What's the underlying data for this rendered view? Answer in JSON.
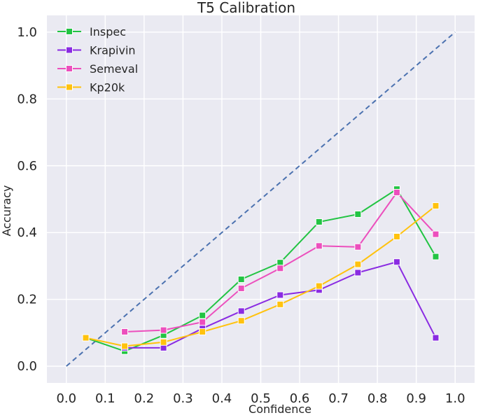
{
  "chart_data": {
    "type": "line",
    "title": "T5 Calibration",
    "xlabel": "Confidence",
    "ylabel": "Accuracy",
    "xlim": [
      -0.05,
      1.05
    ],
    "ylim": [
      -0.05,
      1.05
    ],
    "xticks": [
      "0.0",
      "0.1",
      "0.2",
      "0.3",
      "0.4",
      "0.5",
      "0.6",
      "0.7",
      "0.8",
      "0.9",
      "1.0"
    ],
    "yticks": [
      "0.0",
      "0.2",
      "0.4",
      "0.6",
      "0.8",
      "1.0"
    ],
    "grid": true,
    "legend_position": "top-left",
    "reference_line": {
      "x": [
        0.0,
        1.0
      ],
      "y": [
        0.0,
        1.0
      ],
      "style": "dashed",
      "color": "#4c72b0"
    },
    "series": [
      {
        "name": "Inspec",
        "color": "#22c443",
        "x": [
          0.05,
          0.15,
          0.25,
          0.35,
          0.45,
          0.55,
          0.65,
          0.75,
          0.85,
          0.95
        ],
        "y": [
          0.085,
          0.045,
          0.093,
          0.152,
          0.26,
          0.31,
          0.432,
          0.455,
          0.53,
          0.328
        ]
      },
      {
        "name": "Krapivin",
        "color": "#8a2be2",
        "x": [
          0.15,
          0.25,
          0.35,
          0.45,
          0.55,
          0.65,
          0.75,
          0.85,
          0.95
        ],
        "y": [
          0.055,
          0.055,
          0.113,
          0.165,
          0.213,
          0.228,
          0.28,
          0.312,
          0.085
        ]
      },
      {
        "name": "Semeval",
        "color": "#ec4fbd",
        "x": [
          0.15,
          0.25,
          0.35,
          0.45,
          0.55,
          0.65,
          0.75,
          0.85,
          0.95
        ],
        "y": [
          0.103,
          0.108,
          0.132,
          0.233,
          0.293,
          0.36,
          0.357,
          0.52,
          0.395
        ]
      },
      {
        "name": "Kp20k",
        "color": "#ffc20e",
        "x": [
          0.05,
          0.15,
          0.25,
          0.35,
          0.45,
          0.55,
          0.65,
          0.75,
          0.85,
          0.95
        ],
        "y": [
          0.085,
          0.06,
          0.072,
          0.103,
          0.136,
          0.185,
          0.24,
          0.305,
          0.388,
          0.48
        ]
      }
    ]
  }
}
